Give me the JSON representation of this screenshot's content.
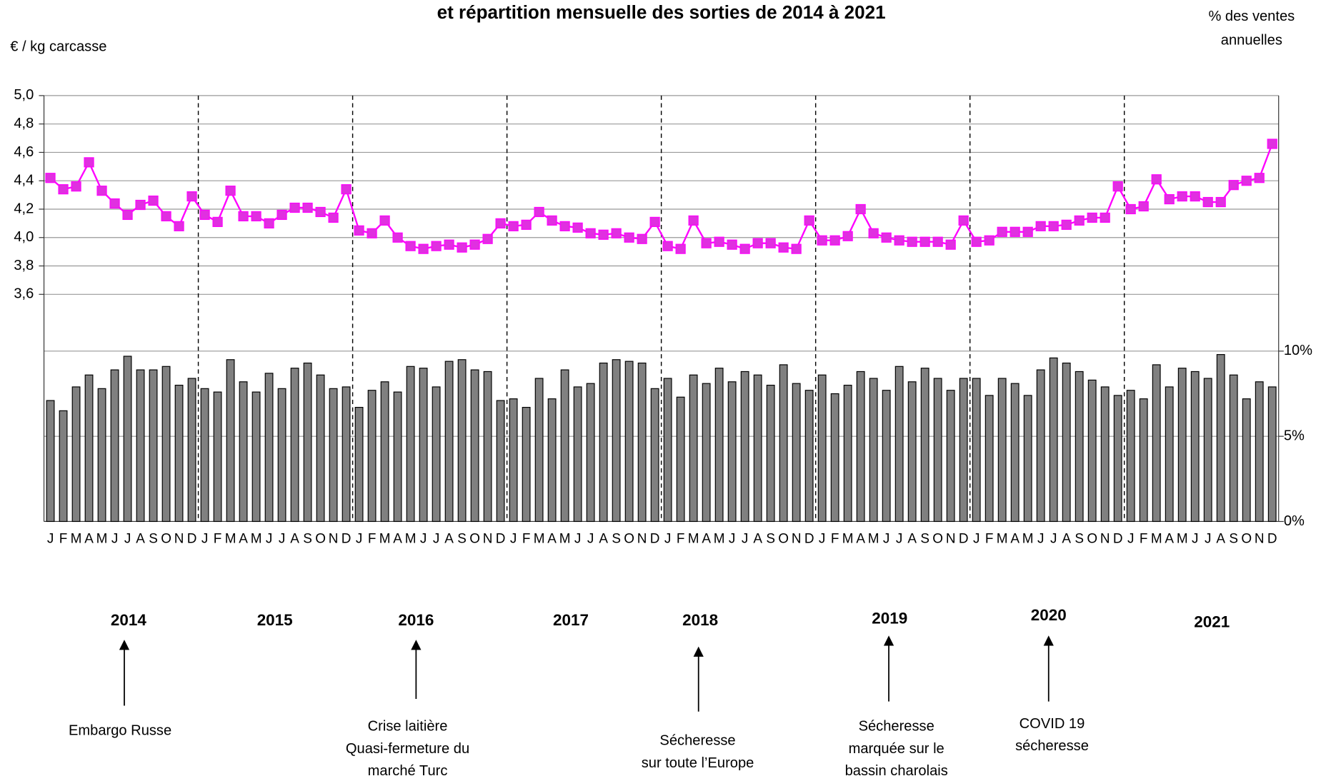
{
  "chart_data": {
    "type": "combo",
    "title": "et répartition mensuelle des sorties de 2014 à 2021",
    "ylabel": "€ / kg carcasse",
    "y2label": [
      "% des ventes",
      "annuelles"
    ],
    "categories": [
      "J",
      "F",
      "M",
      "A",
      "M",
      "J",
      "J",
      "A",
      "S",
      "O",
      "N",
      "D",
      "J",
      "F",
      "M",
      "A",
      "M",
      "J",
      "J",
      "A",
      "S",
      "O",
      "N",
      "D",
      "J",
      "F",
      "M",
      "A",
      "M",
      "J",
      "J",
      "A",
      "S",
      "O",
      "N",
      "D",
      "J",
      "F",
      "M",
      "A",
      "M",
      "J",
      "J",
      "A",
      "S",
      "O",
      "N",
      "D",
      "J",
      "F",
      "M",
      "A",
      "M",
      "J",
      "J",
      "A",
      "S",
      "O",
      "N",
      "D",
      "J",
      "F",
      "M",
      "A",
      "M",
      "J",
      "J",
      "A",
      "S",
      "O",
      "N",
      "D",
      "J",
      "F",
      "M",
      "A",
      "M",
      "J",
      "J",
      "A",
      "S",
      "O",
      "N",
      "D",
      "J",
      "F",
      "M",
      "A",
      "M",
      "J",
      "J",
      "A",
      "S",
      "O",
      "N",
      "D"
    ],
    "ylim": [
      2.0,
      5.0
    ],
    "yticks": [
      {
        "value": 3.6,
        "label": "3,6"
      },
      {
        "value": 3.8,
        "label": "3,8"
      },
      {
        "value": 4.0,
        "label": "4,0"
      },
      {
        "value": 4.2,
        "label": "4,2"
      },
      {
        "value": 4.4,
        "label": "4,4"
      },
      {
        "value": 4.6,
        "label": "4,6"
      },
      {
        "value": 4.8,
        "label": "4,8"
      },
      {
        "value": 5.0,
        "label": "5,0"
      }
    ],
    "y2lim": [
      0,
      25
    ],
    "y2ticks": [
      {
        "value": 0,
        "label": "0%"
      },
      {
        "value": 5,
        "label": "5%"
      },
      {
        "value": 10,
        "label": "10%"
      }
    ],
    "grid": true,
    "series": [
      {
        "type": "bar",
        "axis": "y2",
        "color": "#808080",
        "values": [
          7.1,
          6.5,
          7.9,
          8.6,
          7.8,
          8.9,
          9.7,
          8.9,
          8.9,
          9.1,
          8.0,
          8.4,
          7.8,
          7.6,
          9.5,
          8.2,
          7.6,
          8.7,
          7.8,
          9.0,
          9.3,
          8.6,
          7.8,
          7.9,
          6.7,
          7.7,
          8.2,
          7.6,
          9.1,
          9.0,
          7.9,
          9.4,
          9.5,
          8.9,
          8.8,
          7.1,
          7.2,
          6.7,
          8.4,
          7.2,
          8.9,
          7.9,
          8.1,
          9.3,
          9.5,
          9.4,
          9.3,
          7.8,
          8.4,
          7.3,
          8.6,
          8.1,
          9.0,
          8.2,
          8.8,
          8.6,
          8.0,
          9.2,
          8.1,
          7.7,
          8.6,
          7.5,
          8.0,
          8.8,
          8.4,
          7.7,
          9.1,
          8.2,
          9.0,
          8.4,
          7.7,
          8.4,
          8.4,
          7.4,
          8.4,
          8.1,
          7.4,
          8.9,
          9.6,
          9.3,
          8.8,
          8.3,
          7.9,
          7.4,
          7.7,
          7.2,
          9.2,
          7.9,
          9.0,
          8.8,
          8.4,
          9.8,
          8.6,
          7.2,
          8.2,
          7.9
        ]
      },
      {
        "type": "line",
        "axis": "y",
        "color": "#ff00ff",
        "values": [
          4.42,
          4.34,
          4.36,
          4.53,
          4.33,
          4.24,
          4.16,
          4.23,
          4.26,
          4.15,
          4.08,
          4.29,
          4.16,
          4.11,
          4.33,
          4.15,
          4.15,
          4.1,
          4.16,
          4.21,
          4.21,
          4.18,
          4.14,
          4.34,
          4.05,
          4.03,
          4.12,
          4.0,
          3.94,
          3.92,
          3.94,
          3.95,
          3.93,
          3.95,
          3.99,
          4.1,
          4.08,
          4.09,
          4.18,
          4.12,
          4.08,
          4.07,
          4.03,
          4.02,
          4.03,
          4.0,
          3.99,
          4.11,
          3.94,
          3.92,
          4.12,
          3.96,
          3.97,
          3.95,
          3.92,
          3.96,
          3.96,
          3.93,
          3.92,
          4.12,
          3.98,
          3.98,
          4.01,
          4.2,
          4.03,
          4.0,
          3.98,
          3.97,
          3.97,
          3.97,
          3.95,
          4.12,
          3.97,
          3.98,
          4.04,
          4.04,
          4.04,
          4.08,
          4.08,
          4.09,
          4.12,
          4.14,
          4.14,
          4.36,
          4.2,
          4.22,
          4.41,
          4.27,
          4.29,
          4.29,
          4.25,
          4.25,
          4.37,
          4.4,
          4.42,
          4.66
        ]
      }
    ],
    "years": [
      "2014",
      "2015",
      "2016",
      "2017",
      "2018",
      "2019",
      "2020",
      "2021"
    ],
    "annotations": [
      {
        "lines": [
          "Embargo Russe"
        ]
      },
      {
        "lines": [
          "Crise laitière",
          "Quasi-fermeture du",
          "marché Turc"
        ]
      },
      {
        "lines": [
          "Sécheresse",
          "sur toute l’Europe"
        ]
      },
      {
        "lines": [
          "Sécheresse",
          "marquée sur le",
          "bassin charolais"
        ]
      },
      {
        "lines": [
          "COVID 19",
          "sécheresse"
        ]
      }
    ]
  }
}
